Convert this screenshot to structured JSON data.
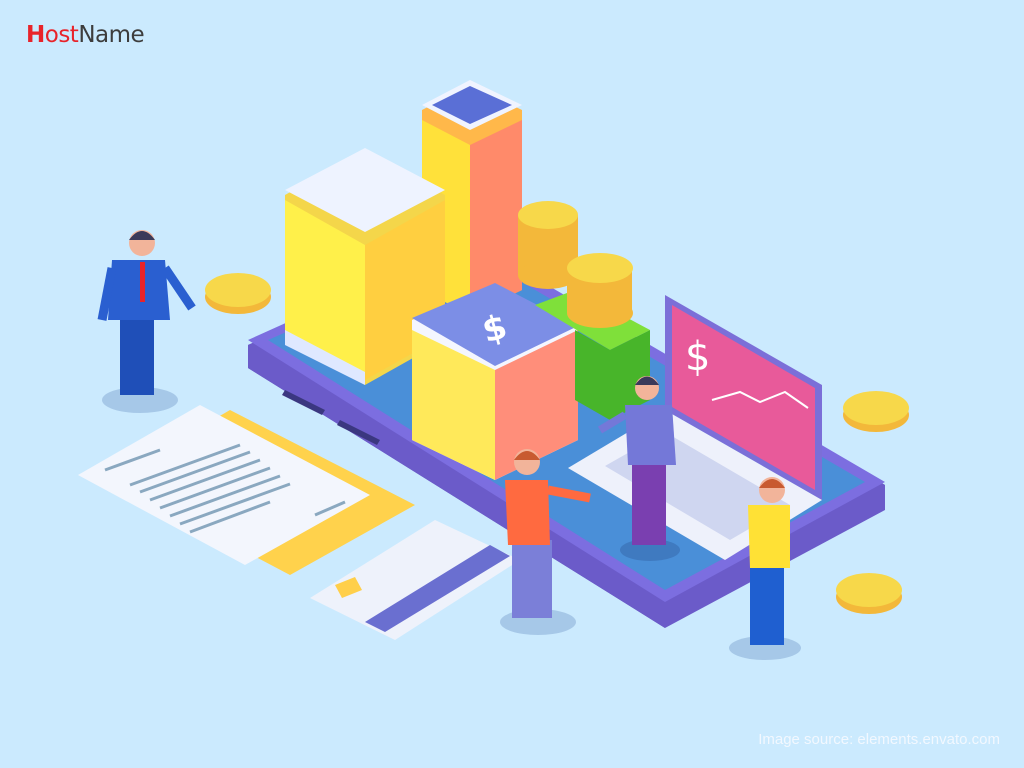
{
  "logo": {
    "prefix": "H",
    "accent_part": "ost",
    "dark_part": "Name",
    "full": "HostName",
    "accent_color": "#e8232a",
    "dark_color": "#3d3d3d"
  },
  "illustration": {
    "subject": "isometric smartphone with buildings, coins, laptop and business people",
    "currency_symbol": "$",
    "colors": {
      "background": "#cbeafe",
      "phone_body": "#6b5bc9",
      "phone_screen": "#4a8fd8",
      "coin": "#f7d84a"
    }
  },
  "footer": {
    "source": "Image source: elements.envato.com"
  }
}
